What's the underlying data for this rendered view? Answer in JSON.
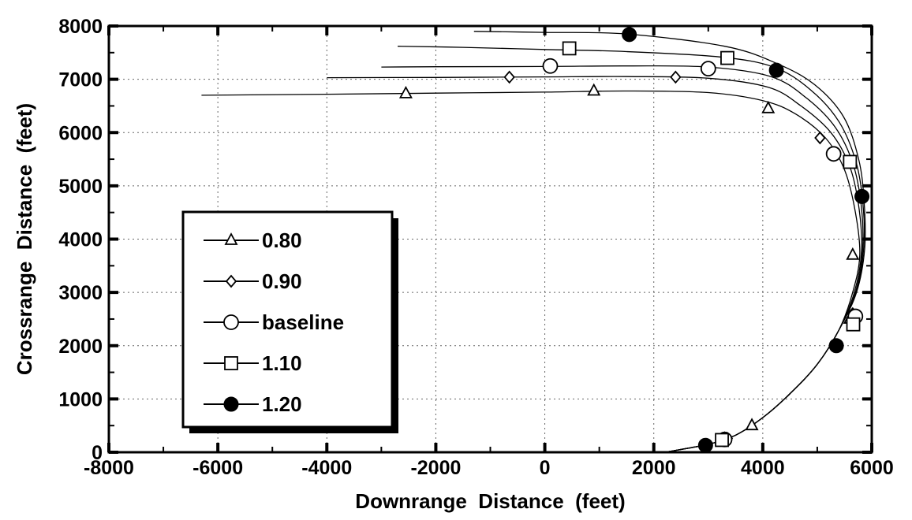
{
  "chart_data": {
    "type": "line",
    "title": "",
    "xlabel": "Downrange  Distance  (feet)",
    "ylabel": "Crossrange  Distance  (feet)",
    "xlim": [
      -8000,
      6000
    ],
    "ylim": [
      0,
      8000
    ],
    "x_ticks": [
      -8000,
      -6000,
      -4000,
      -2000,
      0,
      2000,
      4000,
      6000
    ],
    "y_ticks": [
      0,
      1000,
      2000,
      3000,
      4000,
      5000,
      6000,
      7000,
      8000
    ],
    "x_tick_labels": [
      "-8000",
      "-6000",
      "-4000",
      "-2000",
      "0",
      "2000",
      "4000",
      "6000"
    ],
    "y_tick_labels": [
      "0",
      "1000",
      "2000",
      "3000",
      "4000",
      "5000",
      "6000",
      "7000",
      "8000"
    ],
    "grid": true,
    "legend_position": "left-middle",
    "series": [
      {
        "name": "0.80",
        "marker": "triangle",
        "values": [
          [
            2200,
            0
          ],
          [
            3000,
            150
          ],
          [
            3500,
            320
          ],
          [
            4000,
            650
          ],
          [
            4500,
            1100
          ],
          [
            5000,
            1650
          ],
          [
            5400,
            2300
          ],
          [
            5650,
            3000
          ],
          [
            5780,
            3700
          ],
          [
            5700,
            4500
          ],
          [
            5500,
            5300
          ],
          [
            5150,
            5900
          ],
          [
            4600,
            6350
          ],
          [
            4000,
            6600
          ],
          [
            3000,
            6750
          ],
          [
            1500,
            6780
          ],
          [
            0,
            6760
          ],
          [
            -2000,
            6740
          ],
          [
            -4000,
            6720
          ],
          [
            -6300,
            6700
          ]
        ],
        "markers": [
          [
            3300,
            250
          ],
          [
            3800,
            500
          ],
          [
            5600,
            2500
          ],
          [
            5650,
            3700
          ],
          [
            4100,
            6450
          ],
          [
            900,
            6780
          ],
          [
            -2550,
            6730
          ]
        ]
      },
      {
        "name": "0.90",
        "marker": "diamond",
        "values": [
          [
            2200,
            0
          ],
          [
            3000,
            150
          ],
          [
            3500,
            320
          ],
          [
            4000,
            650
          ],
          [
            4500,
            1100
          ],
          [
            5000,
            1650
          ],
          [
            5400,
            2300
          ],
          [
            5680,
            3000
          ],
          [
            5810,
            3750
          ],
          [
            5770,
            4550
          ],
          [
            5600,
            5350
          ],
          [
            5250,
            6000
          ],
          [
            4700,
            6500
          ],
          [
            4100,
            6850
          ],
          [
            3000,
            7020
          ],
          [
            1500,
            7050
          ],
          [
            0,
            7045
          ],
          [
            -2000,
            7035
          ],
          [
            -4000,
            7030
          ]
        ],
        "markers": [
          [
            3350,
            260
          ],
          [
            5650,
            2600
          ],
          [
            5050,
            5900
          ],
          [
            2400,
            7040
          ],
          [
            -650,
            7040
          ]
        ]
      },
      {
        "name": "baseline",
        "marker": "circle",
        "values": [
          [
            2200,
            0
          ],
          [
            3000,
            150
          ],
          [
            3500,
            320
          ],
          [
            4000,
            650
          ],
          [
            4500,
            1100
          ],
          [
            5000,
            1650
          ],
          [
            5400,
            2300
          ],
          [
            5700,
            3000
          ],
          [
            5830,
            3780
          ],
          [
            5810,
            4600
          ],
          [
            5660,
            5400
          ],
          [
            5330,
            6100
          ],
          [
            4800,
            6650
          ],
          [
            4150,
            7050
          ],
          [
            3000,
            7230
          ],
          [
            1500,
            7250
          ],
          [
            0,
            7240
          ],
          [
            -2000,
            7235
          ],
          [
            -3000,
            7230
          ]
        ],
        "markers": [
          [
            3300,
            240
          ],
          [
            5700,
            2550
          ],
          [
            5300,
            5600
          ],
          [
            3000,
            7200
          ],
          [
            100,
            7250
          ]
        ]
      },
      {
        "name": "1.10",
        "marker": "square",
        "values": [
          [
            2200,
            0
          ],
          [
            3000,
            150
          ],
          [
            3500,
            320
          ],
          [
            4000,
            650
          ],
          [
            4500,
            1100
          ],
          [
            5000,
            1650
          ],
          [
            5400,
            2300
          ],
          [
            5710,
            3000
          ],
          [
            5850,
            3800
          ],
          [
            5840,
            4650
          ],
          [
            5710,
            5450
          ],
          [
            5400,
            6200
          ],
          [
            4880,
            6800
          ],
          [
            4200,
            7230
          ],
          [
            3200,
            7420
          ],
          [
            1500,
            7520
          ],
          [
            0,
            7560
          ],
          [
            -1500,
            7600
          ],
          [
            -2700,
            7620
          ]
        ],
        "markers": [
          [
            3250,
            230
          ],
          [
            5660,
            2400
          ],
          [
            5600,
            5450
          ],
          [
            3350,
            7400
          ],
          [
            450,
            7580
          ]
        ]
      },
      {
        "name": "1.20",
        "marker": "filled-circle",
        "values": [
          [
            2200,
            0
          ],
          [
            3000,
            150
          ],
          [
            3500,
            320
          ],
          [
            4000,
            650
          ],
          [
            4500,
            1100
          ],
          [
            5000,
            1650
          ],
          [
            5400,
            2300
          ],
          [
            5720,
            3000
          ],
          [
            5870,
            3820
          ],
          [
            5860,
            4700
          ],
          [
            5760,
            5500
          ],
          [
            5480,
            6300
          ],
          [
            4950,
            6900
          ],
          [
            4250,
            7300
          ],
          [
            3300,
            7620
          ],
          [
            1500,
            7850
          ],
          [
            0,
            7880
          ],
          [
            -1300,
            7900
          ]
        ],
        "markers": [
          [
            2950,
            130
          ],
          [
            5350,
            2000
          ],
          [
            5820,
            4800
          ],
          [
            4250,
            7170
          ],
          [
            1550,
            7840
          ]
        ]
      }
    ]
  }
}
